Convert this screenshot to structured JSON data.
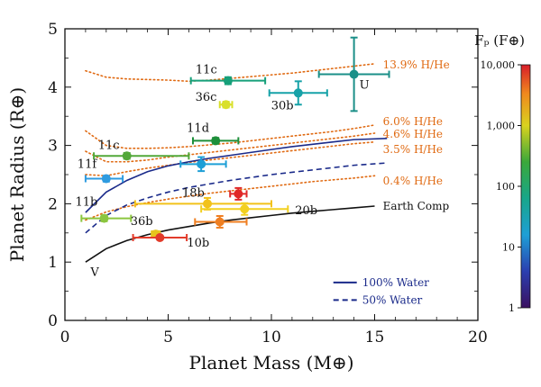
{
  "chart_data": {
    "type": "scatter",
    "xlabel": "Planet Mass (M⊕)",
    "ylabel": "Planet Radius (R⊕)",
    "xlim": [
      0,
      20
    ],
    "ylim": [
      0,
      5
    ],
    "xticks": [
      0,
      5,
      10,
      15,
      20
    ],
    "yticks": [
      0,
      1,
      2,
      3,
      4,
      5
    ],
    "colorbar": {
      "title": "Fₚ (F⊕)",
      "scale": "log",
      "range": [
        1,
        10000
      ],
      "ticks": [
        "10,000",
        "1,000",
        "100",
        "10",
        "1"
      ]
    },
    "points": [
      {
        "label": "11c",
        "x": 7.9,
        "y": 4.11,
        "xerr": [
          1.8,
          1.8
        ],
        "yerr": [
          0.06,
          0.06
        ],
        "color": "#16a07a"
      },
      {
        "label": "36c",
        "x": 7.8,
        "y": 3.7,
        "xerr": [
          0.3,
          0.3
        ],
        "yerr": [
          0.05,
          0.05
        ],
        "color": "#d9e02a"
      },
      {
        "label": "30b",
        "x": 11.3,
        "y": 3.9,
        "xerr": [
          1.4,
          1.4
        ],
        "yerr": [
          0.2,
          0.2
        ],
        "color": "#17a2a8"
      },
      {
        "label": "U",
        "x": 14.0,
        "y": 4.22,
        "xerr": [
          1.7,
          1.7
        ],
        "yerr": [
          0.63,
          0.63
        ],
        "color": "#1b8f88"
      },
      {
        "label": "11d",
        "x": 7.3,
        "y": 3.08,
        "xerr": [
          1.1,
          1.1
        ],
        "yerr": [
          0.05,
          0.05
        ],
        "color": "#1e8f3a"
      },
      {
        "label": "11c",
        "x": 3.0,
        "y": 2.82,
        "xerr": [
          1.6,
          3.0
        ],
        "yerr": [
          0.05,
          0.05
        ],
        "color": "#52a83a"
      },
      {
        "label": "",
        "x": 6.6,
        "y": 2.68,
        "xerr": [
          1.0,
          1.2
        ],
        "yerr": [
          0.12,
          0.12
        ],
        "color": "#1e9fd6"
      },
      {
        "label": "11f",
        "x": 2.0,
        "y": 2.43,
        "xerr": [
          1.0,
          0.8
        ],
        "yerr": [
          0.05,
          0.05
        ],
        "color": "#2e9be0"
      },
      {
        "label": "18b",
        "x": 6.9,
        "y": 2.0,
        "xerr": [
          3.5,
          3.1
        ],
        "yerr": [
          0.1,
          0.1
        ],
        "color": "#f2c21a"
      },
      {
        "label": "",
        "x": 8.4,
        "y": 2.17,
        "xerr": [
          0.4,
          0.4
        ],
        "yerr": [
          0.1,
          0.1
        ],
        "color": "#e02828"
      },
      {
        "label": "20b",
        "x": 8.7,
        "y": 1.91,
        "xerr": [
          2.1,
          2.1
        ],
        "yerr": [
          0.1,
          0.1
        ],
        "color": "#f2d020"
      },
      {
        "label": "11b",
        "x": 1.9,
        "y": 1.75,
        "xerr": [
          1.1,
          1.3
        ],
        "yerr": [
          0.05,
          0.05
        ],
        "color": "#8cc63f"
      },
      {
        "label": "",
        "x": 7.5,
        "y": 1.69,
        "xerr": [
          1.2,
          1.3
        ],
        "yerr": [
          0.1,
          0.1
        ],
        "color": "#ef7f22"
      },
      {
        "label": "36b",
        "x": 4.4,
        "y": 1.48,
        "xerr": [
          0.2,
          0.2
        ],
        "yerr": [
          0.05,
          0.05
        ],
        "color": "#e6c51c"
      },
      {
        "label": "10b",
        "x": 4.6,
        "y": 1.42,
        "xerr": [
          1.3,
          1.3
        ],
        "yerr": [
          0.03,
          0.03
        ],
        "color": "#e23b2a"
      }
    ],
    "curves": [
      {
        "name": "13.9% H/He",
        "style": "dotted",
        "color": "#e06a12",
        "x": [
          1,
          2,
          3,
          4,
          5,
          6,
          7,
          8,
          9,
          10,
          11,
          12,
          13,
          14,
          15
        ],
        "y": [
          4.28,
          4.17,
          4.14,
          4.13,
          4.12,
          4.1,
          4.12,
          4.15,
          4.18,
          4.21,
          4.24,
          4.28,
          4.32,
          4.36,
          4.4
        ]
      },
      {
        "name": "6.0% H/He",
        "style": "dotted",
        "color": "#e06a12",
        "x": [
          1,
          2,
          3,
          4,
          5,
          6,
          7,
          8,
          9,
          10,
          11,
          12,
          13,
          14,
          15
        ],
        "y": [
          3.25,
          3.0,
          2.95,
          2.95,
          2.96,
          2.98,
          3.01,
          3.04,
          3.08,
          3.12,
          3.16,
          3.2,
          3.24,
          3.29,
          3.35
        ]
      },
      {
        "name": "4.6% H/He",
        "style": "dotted",
        "color": "#e06a12",
        "x": [
          1,
          2,
          3,
          4,
          5,
          6,
          7,
          8,
          9,
          10,
          11,
          12,
          13,
          14,
          15
        ],
        "y": [
          2.9,
          2.72,
          2.72,
          2.75,
          2.8,
          2.84,
          2.88,
          2.92,
          2.96,
          3.0,
          3.04,
          3.08,
          3.12,
          3.16,
          3.21
        ]
      },
      {
        "name": "3.5% H/He",
        "style": "dotted",
        "color": "#e06a12",
        "x": [
          1,
          2,
          3,
          4,
          5,
          6,
          7,
          8,
          9,
          10,
          11,
          12,
          13,
          14,
          15
        ],
        "y": [
          2.5,
          2.48,
          2.55,
          2.61,
          2.66,
          2.71,
          2.75,
          2.79,
          2.83,
          2.87,
          2.91,
          2.95,
          2.99,
          3.03,
          3.06
        ]
      },
      {
        "name": "0.4% H/He",
        "style": "dotted",
        "color": "#e06a12",
        "x": [
          1,
          2,
          3,
          4,
          5,
          6,
          7,
          8,
          9,
          10,
          11,
          12,
          13,
          14,
          15
        ],
        "y": [
          1.72,
          1.86,
          1.95,
          2.02,
          2.08,
          2.13,
          2.18,
          2.22,
          2.26,
          2.3,
          2.34,
          2.38,
          2.41,
          2.44,
          2.48
        ]
      },
      {
        "name": "100% Water",
        "style": "solid",
        "color": "#1a2a8a",
        "x": [
          1,
          2,
          3,
          4,
          5,
          6,
          7,
          8,
          9,
          10,
          11,
          12,
          13,
          14,
          15.6
        ],
        "y": [
          1.85,
          2.2,
          2.4,
          2.55,
          2.65,
          2.72,
          2.78,
          2.83,
          2.88,
          2.93,
          2.98,
          3.02,
          3.06,
          3.1,
          3.12
        ]
      },
      {
        "name": "50% Water",
        "style": "dashed",
        "color": "#1a2a8a",
        "x": [
          1,
          2,
          3,
          4,
          5,
          6,
          7,
          8,
          9,
          10,
          11,
          12,
          13,
          14,
          15.6
        ],
        "y": [
          1.5,
          1.8,
          1.98,
          2.1,
          2.2,
          2.28,
          2.34,
          2.4,
          2.45,
          2.5,
          2.54,
          2.58,
          2.62,
          2.66,
          2.7
        ]
      },
      {
        "name": "Earth Comp",
        "style": "solid",
        "color": "#111111",
        "x": [
          1,
          2,
          3,
          4,
          5,
          6,
          7,
          8,
          9,
          10,
          11,
          12,
          13,
          14,
          15
        ],
        "y": [
          1.0,
          1.23,
          1.37,
          1.47,
          1.55,
          1.61,
          1.67,
          1.72,
          1.76,
          1.8,
          1.84,
          1.87,
          1.9,
          1.93,
          1.96
        ]
      }
    ],
    "curve_labels": [
      "13.9% H/He",
      "6.0% H/He",
      "4.6% H/He",
      "3.5% H/He",
      "0.4% H/He",
      "Earth Comp"
    ],
    "solar_system": [
      {
        "label": "V",
        "x": 0.8,
        "y": 0.95
      },
      {
        "label": "U",
        "x": 14.5,
        "y": 4.0
      }
    ],
    "legend": {
      "position": "bottom-right",
      "items": [
        {
          "label": "100% Water",
          "style": "solid",
          "color": "#1a2a8a"
        },
        {
          "label": "50% Water",
          "style": "dashed",
          "color": "#1a2a8a"
        }
      ]
    }
  }
}
